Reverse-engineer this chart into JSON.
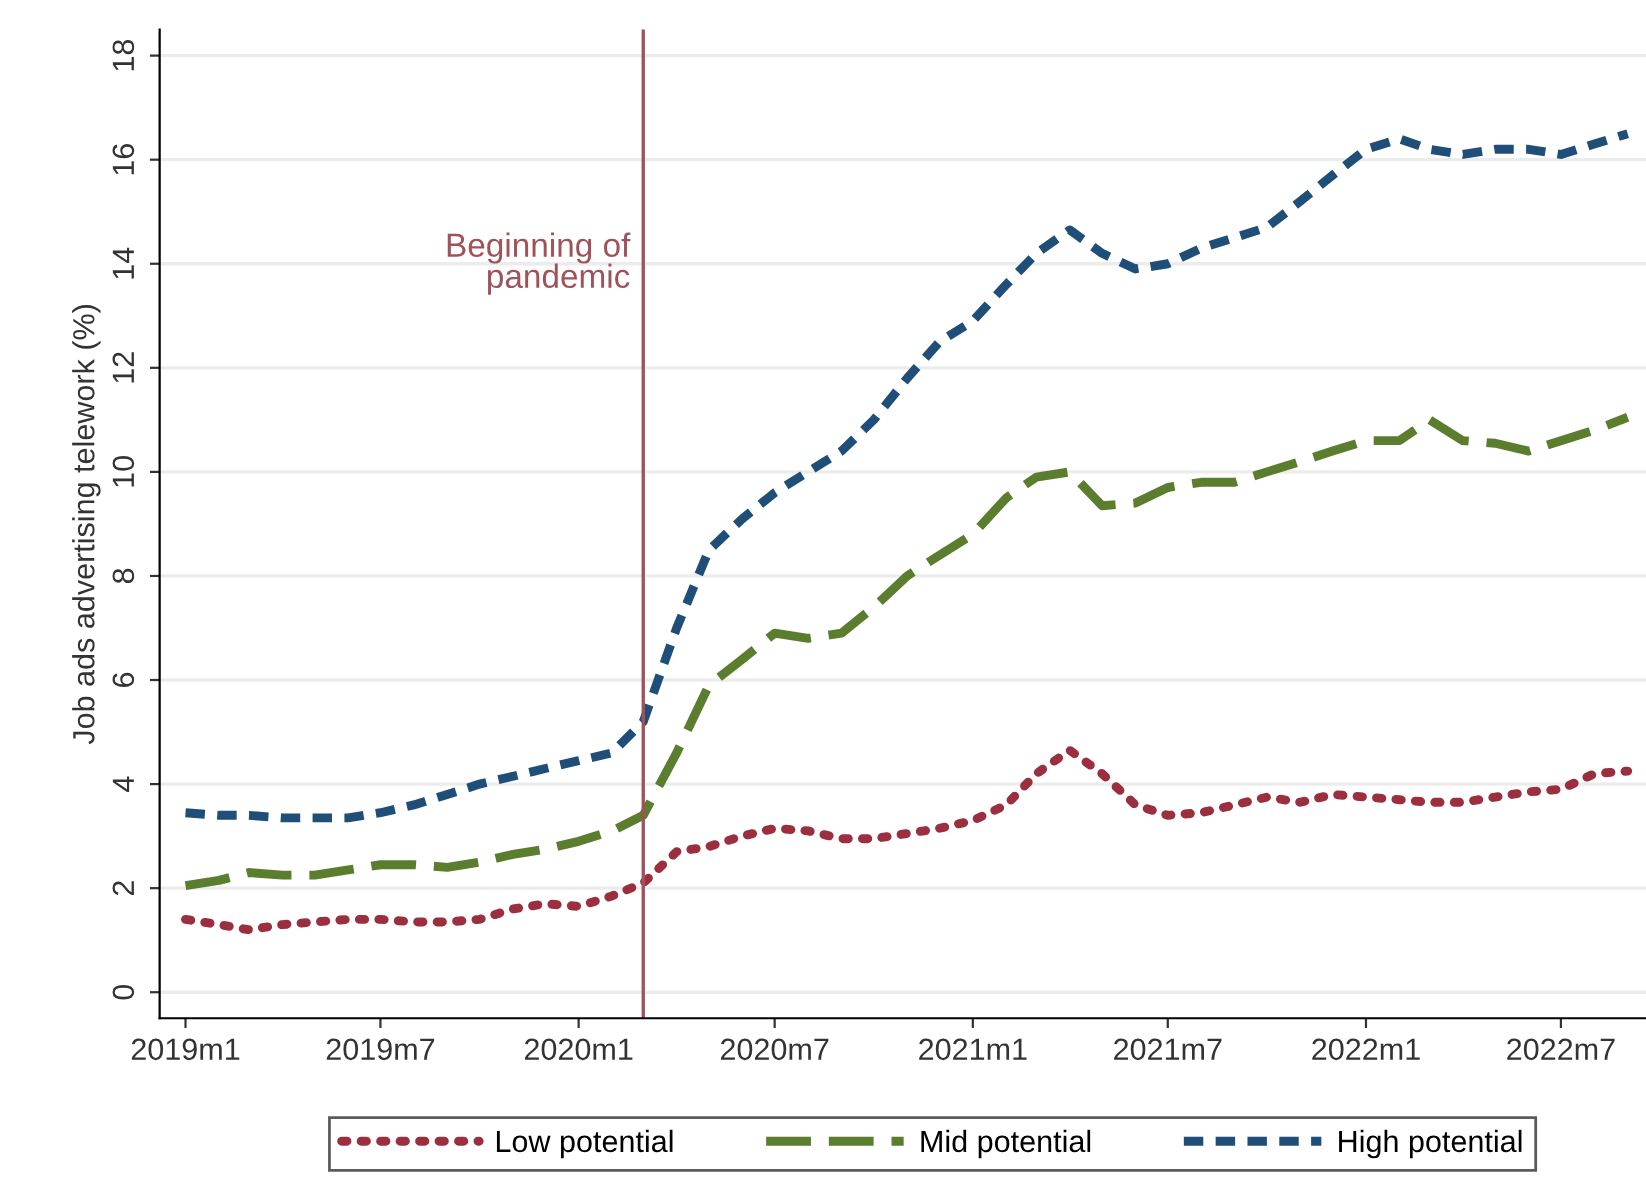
{
  "chart_data": {
    "type": "line",
    "ylabel": "Job ads advertising telework (%)",
    "x": [
      "2019-01",
      "2019-02",
      "2019-03",
      "2019-04",
      "2019-05",
      "2019-06",
      "2019-07",
      "2019-08",
      "2019-09",
      "2019-10",
      "2019-11",
      "2019-12",
      "2020-01",
      "2020-02",
      "2020-03",
      "2020-04",
      "2020-05",
      "2020-06",
      "2020-07",
      "2020-08",
      "2020-09",
      "2020-10",
      "2020-11",
      "2020-12",
      "2021-01",
      "2021-02",
      "2021-03",
      "2021-04",
      "2021-05",
      "2021-06",
      "2021-07",
      "2021-08",
      "2021-09",
      "2021-10",
      "2021-11",
      "2021-12",
      "2022-01",
      "2022-02",
      "2022-03",
      "2022-04",
      "2022-05",
      "2022-06",
      "2022-07",
      "2022-08",
      "2022-09"
    ],
    "series": [
      {
        "name": "Low potential",
        "color": "#9b2f3f",
        "line_style": "dotted",
        "values": [
          1.4,
          1.3,
          1.2,
          1.3,
          1.35,
          1.4,
          1.4,
          1.35,
          1.35,
          1.4,
          1.6,
          1.7,
          1.65,
          1.85,
          2.1,
          2.7,
          2.8,
          3.0,
          3.15,
          3.1,
          2.95,
          2.95,
          3.05,
          3.15,
          3.3,
          3.6,
          4.2,
          4.65,
          4.2,
          3.6,
          3.4,
          3.45,
          3.6,
          3.75,
          3.65,
          3.8,
          3.75,
          3.7,
          3.65,
          3.65,
          3.75,
          3.85,
          3.9,
          4.2,
          4.25
        ]
      },
      {
        "name": "Mid potential",
        "color": "#5a7d2e",
        "line_style": "dashed",
        "values": [
          2.05,
          2.15,
          2.3,
          2.25,
          2.25,
          2.35,
          2.45,
          2.45,
          2.4,
          2.5,
          2.65,
          2.75,
          2.9,
          3.1,
          3.4,
          4.6,
          5.9,
          6.4,
          6.9,
          6.8,
          6.9,
          7.4,
          8.0,
          8.4,
          8.8,
          9.5,
          9.9,
          10.0,
          9.35,
          9.4,
          9.7,
          9.8,
          9.8,
          10.0,
          10.2,
          10.4,
          10.6,
          10.6,
          11.0,
          10.6,
          10.55,
          10.4,
          10.6,
          10.8,
          11.05
        ]
      },
      {
        "name": "High potential",
        "color": "#1f4e79",
        "line_style": "dashed",
        "values": [
          3.45,
          3.4,
          3.4,
          3.35,
          3.35,
          3.35,
          3.45,
          3.6,
          3.8,
          4.0,
          4.15,
          4.3,
          4.45,
          4.6,
          5.2,
          7.0,
          8.5,
          9.1,
          9.6,
          10.0,
          10.4,
          11.0,
          11.8,
          12.5,
          12.9,
          13.6,
          14.2,
          14.65,
          14.2,
          13.9,
          14.0,
          14.3,
          14.5,
          14.7,
          15.2,
          15.7,
          16.2,
          16.4,
          16.2,
          16.1,
          16.2,
          16.2,
          16.1,
          16.3,
          16.5
        ]
      }
    ],
    "xlim": [
      "2018-12-08",
      "2022-09-18"
    ],
    "xticks": [
      {
        "value": "2019-01",
        "label": "2019m1"
      },
      {
        "value": "2019-07",
        "label": "2019m7"
      },
      {
        "value": "2020-01",
        "label": "2020m1"
      },
      {
        "value": "2020-07",
        "label": "2020m7"
      },
      {
        "value": "2021-01",
        "label": "2021m1"
      },
      {
        "value": "2021-07",
        "label": "2021m7"
      },
      {
        "value": "2022-01",
        "label": "2022m1"
      },
      {
        "value": "2022-07",
        "label": "2022m7"
      }
    ],
    "ylim": [
      -0.5,
      18.5
    ],
    "yticks": [
      0,
      2,
      4,
      6,
      8,
      10,
      12,
      14,
      16,
      18
    ],
    "ref_lines": [
      {
        "axis": "x",
        "value": "2020-03",
        "label": "Beginning of\npandemic",
        "color": "#a0525a",
        "line_style": "solid"
      }
    ],
    "grid": "y",
    "legend": "bottom",
    "marker": "none"
  }
}
